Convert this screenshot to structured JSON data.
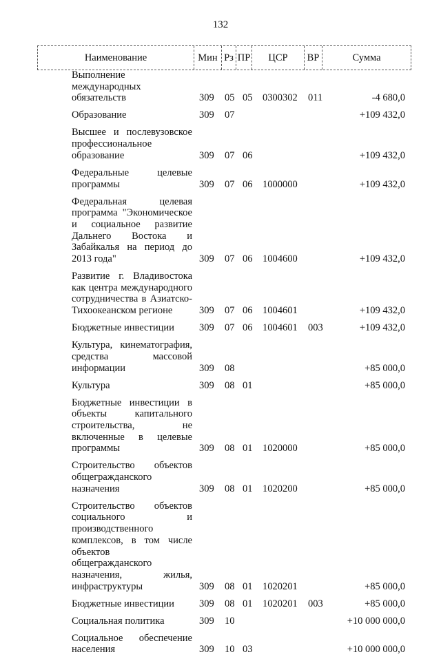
{
  "page_number": "132",
  "table": {
    "headers": [
      "Наименование",
      "Мин",
      "Рз",
      "ПР",
      "ЦСР",
      "ВР",
      "Сумма"
    ],
    "rows": [
      {
        "name": "Выполнение международных обязательств",
        "min": "309",
        "rz": "05",
        "pr": "05",
        "csr": "0300302",
        "vr": "011",
        "sum": "-4 680,0"
      },
      {
        "name": "Образование",
        "min": "309",
        "rz": "07",
        "pr": "",
        "csr": "",
        "vr": "",
        "sum": "+109 432,0"
      },
      {
        "name": "Высшее и послевузовское профессиональное образование",
        "min": "309",
        "rz": "07",
        "pr": "06",
        "csr": "",
        "vr": "",
        "sum": "+109 432,0"
      },
      {
        "name": "Федеральные целевые программы",
        "min": "309",
        "rz": "07",
        "pr": "06",
        "csr": "1000000",
        "vr": "",
        "sum": "+109 432,0"
      },
      {
        "name": "Федеральная целевая программа \"Экономическое и социальное развитие Дальнего Востока и Забайкалья на период до 2013 года\"",
        "min": "309",
        "rz": "07",
        "pr": "06",
        "csr": "1004600",
        "vr": "",
        "sum": "+109 432,0"
      },
      {
        "name": "Развитие г. Владивостока как центра международного сотрудничества в Азиатско-Тихоокеанском регионе",
        "min": "309",
        "rz": "07",
        "pr": "06",
        "csr": "1004601",
        "vr": "",
        "sum": "+109 432,0"
      },
      {
        "name": "Бюджетные инвестиции",
        "min": "309",
        "rz": "07",
        "pr": "06",
        "csr": "1004601",
        "vr": "003",
        "sum": "+109 432,0"
      },
      {
        "name": "Культура, кинематография, средства массовой информации",
        "min": "309",
        "rz": "08",
        "pr": "",
        "csr": "",
        "vr": "",
        "sum": "+85 000,0"
      },
      {
        "name": "Культура",
        "min": "309",
        "rz": "08",
        "pr": "01",
        "csr": "",
        "vr": "",
        "sum": "+85 000,0"
      },
      {
        "name": "Бюджетные инвестиции в объекты капитального строительства, не включенные в целевые программы",
        "min": "309",
        "rz": "08",
        "pr": "01",
        "csr": "1020000",
        "vr": "",
        "sum": "+85 000,0"
      },
      {
        "name": "Строительство объектов общегражданского назначения",
        "min": "309",
        "rz": "08",
        "pr": "01",
        "csr": "1020200",
        "vr": "",
        "sum": "+85 000,0"
      },
      {
        "name": "Строительство объектов социального и производственного комплексов, в том числе объектов общегражданского назначения, жилья, инфраструктуры",
        "min": "309",
        "rz": "08",
        "pr": "01",
        "csr": "1020201",
        "vr": "",
        "sum": "+85 000,0"
      },
      {
        "name": "Бюджетные инвестиции",
        "min": "309",
        "rz": "08",
        "pr": "01",
        "csr": "1020201",
        "vr": "003",
        "sum": "+85 000,0"
      },
      {
        "name": "Социальная политика",
        "min": "309",
        "rz": "10",
        "pr": "",
        "csr": "",
        "vr": "",
        "sum": "+10 000 000,0"
      },
      {
        "name": "Социальное обеспечение населения",
        "min": "309",
        "rz": "10",
        "pr": "03",
        "csr": "",
        "vr": "",
        "sum": "+10 000 000,0"
      }
    ]
  }
}
